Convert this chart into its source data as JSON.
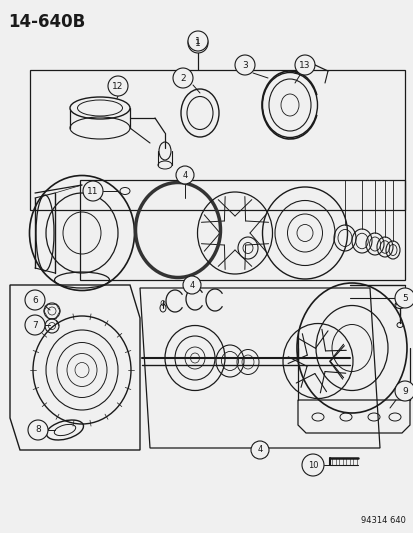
{
  "title": "14-640B",
  "subtitle_code": "94314 640",
  "bg_color": "#f0f0f0",
  "line_color": "#1a1a1a",
  "fig_width": 4.14,
  "fig_height": 5.33,
  "dpi": 100
}
